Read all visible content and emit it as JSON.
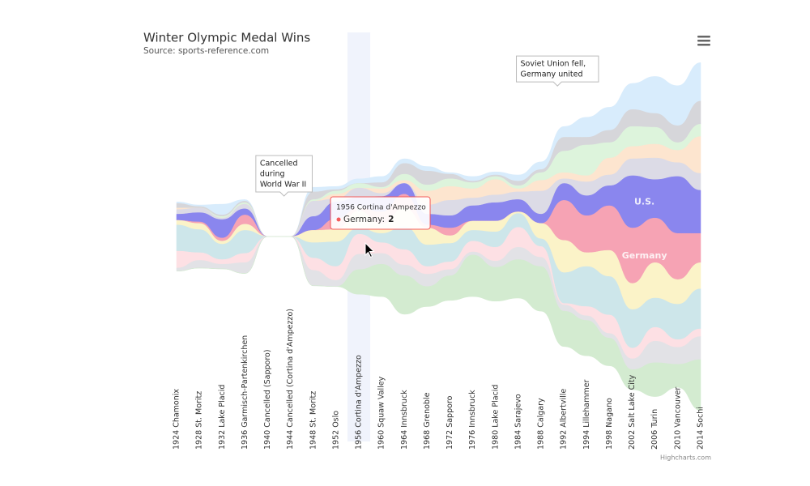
{
  "chart_data": {
    "type": "streamgraph",
    "title": "Winter Olympic Medal Wins",
    "subtitle": "Source: sports-reference.com",
    "credits": "Highcharts.com",
    "categories": [
      "1924 Chamonix",
      "1928 St. Moritz",
      "1932 Lake Placid",
      "1936 Garmisch-Partenkirchen",
      "1940 Cancelled (Sapporo)",
      "1944 Cancelled (Cortina d'Ampezzo)",
      "1948 St. Moritz",
      "1952 Oslo",
      "1956 Cortina d'Ampezzo",
      "1960 Squaw Valley",
      "1964 Innsbruck",
      "1968 Grenoble",
      "1972 Sapporo",
      "1976 Innsbruck",
      "1980 Lake Placid",
      "1984 Sarajevo",
      "1988 Calgary",
      "1992 Albertville",
      "1994 Lillehammer",
      "1998 Nagano",
      "2002 Salt Lake City",
      "2006 Turin",
      "2010 Vancouver",
      "2014 Sochi"
    ],
    "series": [
      {
        "color": "#d8ecfc",
        "values": [
          1,
          1,
          7,
          1,
          0,
          0,
          3,
          2,
          3,
          4,
          3,
          3,
          1,
          3,
          2,
          4,
          5,
          7,
          13,
          15,
          17,
          24,
          26,
          25
        ]
      },
      {
        "color": "#d6d6da",
        "values": [
          3,
          1,
          1,
          1,
          0,
          0,
          5,
          1,
          0,
          3,
          7,
          9,
          3,
          1,
          1,
          3,
          2,
          9,
          5,
          8,
          11,
          9,
          11,
          15
        ]
      },
      {
        "color": "#ddf4dc",
        "values": [
          0,
          0,
          1,
          1,
          0,
          0,
          1,
          2,
          3,
          1,
          4,
          4,
          5,
          4,
          2,
          2,
          5,
          14,
          20,
          10,
          13,
          11,
          5,
          8
        ]
      },
      {
        "color": "#fde5cf",
        "values": [
          1,
          0,
          0,
          0,
          0,
          0,
          0,
          3,
          0,
          3,
          2,
          9,
          9,
          6,
          10,
          2,
          7,
          4,
          4,
          11,
          8,
          9,
          8,
          24
        ]
      },
      {
        "color": "#dcdbe6",
        "values": [
          3,
          3,
          1,
          3,
          0,
          0,
          10,
          2,
          6,
          2,
          0,
          6,
          10,
          5,
          5,
          5,
          15,
          3,
          9,
          7,
          11,
          14,
          9,
          11
        ]
      },
      {
        "name": "U.S.",
        "color": "#8a86ee",
        "values": [
          4,
          6,
          12,
          4,
          0,
          0,
          9,
          11,
          7,
          10,
          7,
          7,
          8,
          10,
          12,
          8,
          6,
          11,
          13,
          13,
          34,
          25,
          37,
          28
        ]
      },
      {
        "name": "Germany",
        "color": "#f6a3b4",
        "values": [
          0,
          1,
          2,
          6,
          0,
          0,
          0,
          7,
          2,
          8,
          9,
          2,
          5,
          0,
          0,
          0,
          0,
          26,
          24,
          29,
          36,
          29,
          30,
          19
        ]
      },
      {
        "color": "#fbf3c8",
        "values": [
          3,
          4,
          2,
          4,
          0,
          0,
          8,
          8,
          11,
          6,
          12,
          11,
          5,
          6,
          7,
          1,
          10,
          21,
          9,
          17,
          17,
          23,
          16,
          17
        ]
      },
      {
        "color": "#cde6ea",
        "values": [
          17,
          15,
          10,
          15,
          0,
          0,
          10,
          16,
          4,
          6,
          15,
          14,
          12,
          7,
          10,
          9,
          5,
          20,
          26,
          25,
          25,
          19,
          23,
          26
        ]
      },
      {
        "color": "#fde0e4",
        "values": [
          11,
          5,
          3,
          6,
          0,
          0,
          8,
          9,
          13,
          7,
          10,
          5,
          5,
          7,
          9,
          13,
          7,
          1,
          6,
          12,
          7,
          9,
          5,
          5
        ]
      },
      {
        "color": "#e2e2e6",
        "values": [
          2,
          5,
          3,
          7,
          0,
          0,
          10,
          4,
          10,
          7,
          7,
          8,
          4,
          2,
          4,
          8,
          6,
          4,
          3,
          3,
          7,
          14,
          11,
          15
        ]
      },
      {
        "color": "#d3ebd0",
        "values": [
          0,
          0,
          0,
          0,
          0,
          0,
          0,
          0,
          16,
          21,
          25,
          13,
          16,
          27,
          22,
          25,
          29,
          23,
          23,
          18,
          13,
          22,
          15,
          33
        ]
      }
    ],
    "annotations": [
      {
        "category": 5,
        "lines": [
          "Cancelled",
          "during",
          "World War II"
        ]
      },
      {
        "category": 17,
        "lines": [
          "Soviet Union fell,",
          "Germany united"
        ]
      }
    ],
    "tooltip": {
      "header": "1956 Cortina d'Ampezzo",
      "label": "Germany:",
      "series": 6,
      "category": 8
    }
  }
}
